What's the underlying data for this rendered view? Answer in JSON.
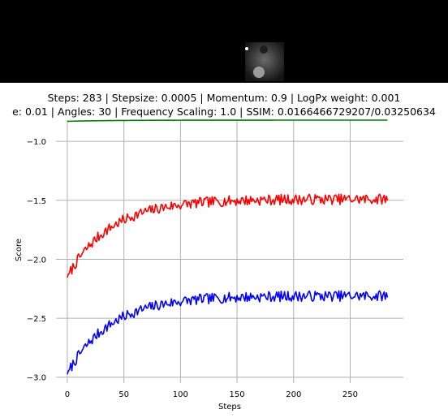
{
  "header": {
    "title_line1": "Steps: 283 | Stepsize: 0.0005 | Momentum: 0.9 | LogPx weight: 0.001",
    "title_line2": "e: 0.01 | Angles: 30 | Frequency Scaling: 1.0 | SSIM: 0.0166466729207/0.03250634"
  },
  "chart_data": {
    "type": "line",
    "title": "",
    "xlabel": "Steps",
    "ylabel": "Score",
    "xlim": [
      -10,
      297
    ],
    "ylim": [
      -3.05,
      -0.82
    ],
    "xticks": [
      0,
      50,
      100,
      150,
      200,
      250
    ],
    "yticks": [
      -3.0,
      -2.5,
      -2.0,
      -1.5,
      -1.0
    ],
    "ytick_labels": [
      "−3.0",
      "−2.5",
      "−2.0",
      "−1.5",
      "−1.0"
    ],
    "grid": true,
    "steps": 283,
    "series": [
      {
        "color": "#008000",
        "start": -0.83,
        "plateau": -0.82,
        "tau": 40,
        "noise": 0.0,
        "seed": 1
      },
      {
        "color": "#ff0000",
        "start": -2.15,
        "plateau": -1.49,
        "tau": 38,
        "noise": 0.045,
        "seed": 7
      },
      {
        "color": "#0000ff",
        "start": -2.97,
        "plateau": -2.31,
        "tau": 38,
        "noise": 0.045,
        "seed": 7
      }
    ]
  }
}
